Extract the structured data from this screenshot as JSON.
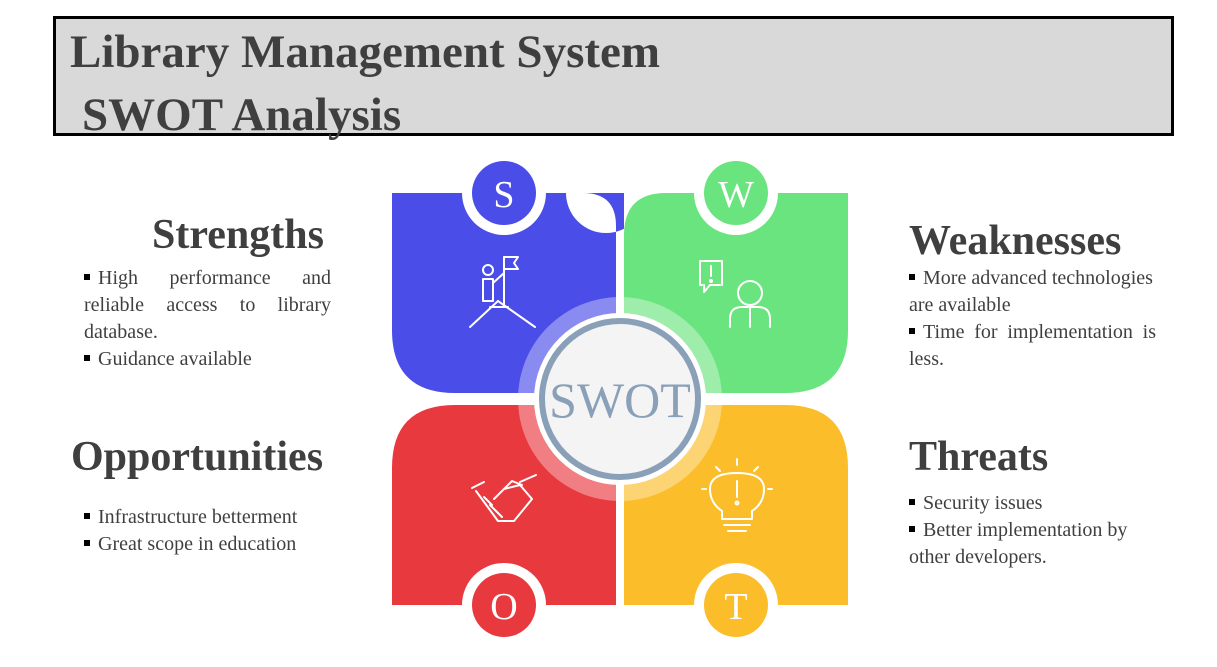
{
  "title": {
    "line1": "Library Management System",
    "line2": "SWOT Analysis"
  },
  "center_label": "SWOT",
  "quadrants": {
    "strengths": {
      "letter": "S",
      "heading": "Strengths",
      "bullets": [
        "High performance and reliable access to library database.",
        "Guidance available"
      ],
      "color": "#4a4de8",
      "icon": "flag-summit-icon"
    },
    "weaknesses": {
      "letter": "W",
      "heading": "Weaknesses",
      "bullets": [
        "More advanced technologies are available",
        "Time for implementation is less."
      ],
      "color": "#6ae47f",
      "icon": "person-alert-icon"
    },
    "opportunities": {
      "letter": "O",
      "heading": "Opportunities",
      "bullets": [
        "Infrastructure betterment",
        "Great scope in education"
      ],
      "color": "#e8393f",
      "icon": "handshake-icon"
    },
    "threats": {
      "letter": "T",
      "heading": "Threats",
      "bullets": [
        "Security issues",
        "Better implementation by other developers."
      ],
      "color": "#fbbd2a",
      "icon": "lightbulb-alert-icon"
    }
  }
}
